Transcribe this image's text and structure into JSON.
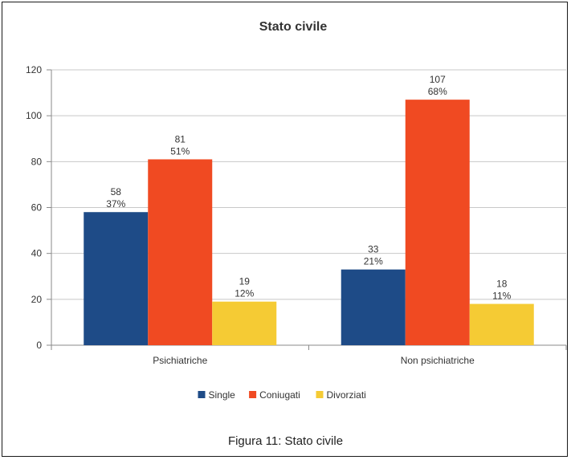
{
  "caption": "Figura 11: Stato civile",
  "chart_data": {
    "type": "bar",
    "title": "Stato civile",
    "xlabel": "",
    "ylabel": "",
    "ylim": [
      0,
      120
    ],
    "yticks": [
      0,
      20,
      40,
      60,
      80,
      100,
      120
    ],
    "grid": true,
    "legend_position": "bottom",
    "categories": [
      "Psichiatriche",
      "Non psichiatriche"
    ],
    "series": [
      {
        "name": "Single",
        "color": "#1e4b87",
        "values": [
          58,
          33
        ],
        "percent_labels": [
          "37%",
          "21%"
        ]
      },
      {
        "name": "Coniugati",
        "color": "#f04a22",
        "values": [
          81,
          107
        ],
        "percent_labels": [
          "51%",
          "68%"
        ]
      },
      {
        "name": "Divorziati",
        "color": "#f5cb34",
        "values": [
          19,
          18
        ],
        "percent_labels": [
          "12%",
          "11%"
        ]
      }
    ]
  }
}
